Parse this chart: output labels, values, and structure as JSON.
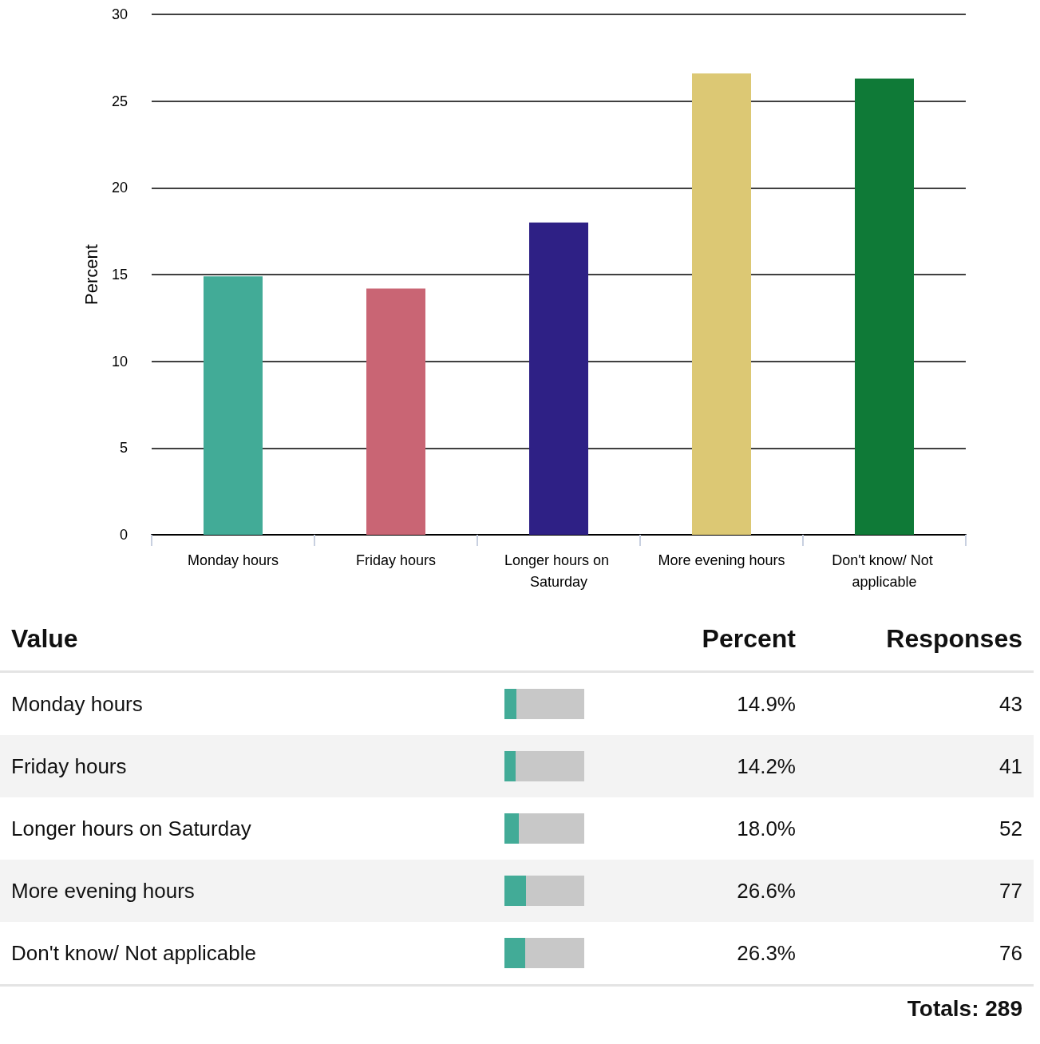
{
  "chart_data": [
    {
      "type": "bar",
      "ylabel": "Percent",
      "categories": [
        "Monday hours",
        "Friday hours",
        "Longer hours on Saturday",
        "More evening hours",
        "Don't know/ Not applicable"
      ],
      "values": [
        14.9,
        14.2,
        18.0,
        26.6,
        26.3
      ],
      "colors": [
        "#42ab97",
        "#c96574",
        "#2e2085",
        "#dcc874",
        "#0f7a37"
      ],
      "value_labels": [
        "14.9%",
        "14.2%",
        "18.0%",
        "26.6%",
        "26.3%"
      ],
      "ylim": [
        0,
        30
      ],
      "yticks": [
        0,
        5,
        10,
        15,
        20,
        25,
        30
      ],
      "grid": "y"
    },
    {
      "type": "other",
      "categories": [
        "Monday hours",
        "Friday hours",
        "Longer hours on Saturday",
        "More evening hours",
        "Don't know/ Not applicable"
      ],
      "values": [
        43,
        41,
        52,
        77,
        76
      ],
      "data_labels": true,
      "annotations": [
        "Value",
        "Percent",
        "Responses",
        "Totals: 289"
      ]
    }
  ]
}
